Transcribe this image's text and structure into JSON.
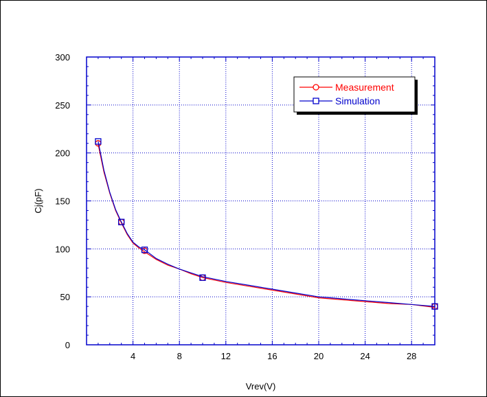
{
  "chart_data": {
    "type": "line",
    "title": "",
    "xlabel": "Vrev(V)",
    "ylabel": "Cj(pF)",
    "xlim": [
      0,
      30
    ],
    "ylim": [
      0,
      300
    ],
    "x_ticks": [
      4,
      8,
      12,
      16,
      20,
      24,
      28
    ],
    "y_ticks": [
      0,
      50,
      100,
      150,
      200,
      250,
      300
    ],
    "grid": true,
    "legend_position": "top-right",
    "series": [
      {
        "name": "Measurement",
        "color": "#ff0000",
        "marker": "circle",
        "curve_x": [
          1,
          1.5,
          2,
          2.5,
          3,
          3.5,
          4,
          4.5,
          5,
          6,
          7,
          8,
          9,
          10,
          12,
          14,
          16,
          18,
          20,
          22,
          24,
          26,
          28,
          30
        ],
        "curve_y": [
          209,
          180,
          158,
          140,
          127,
          115,
          106,
          101,
          97,
          89,
          83,
          79,
          74,
          70,
          65,
          61,
          57,
          53,
          49,
          47,
          45,
          43,
          42,
          39
        ],
        "marker_x": [
          1,
          3,
          5,
          10,
          30
        ],
        "marker_y": [
          210,
          128,
          98,
          70,
          40
        ]
      },
      {
        "name": "Simulation",
        "color": "#0000cc",
        "marker": "square",
        "curve_x": [
          1,
          1.5,
          2,
          2.5,
          3,
          3.5,
          4,
          4.5,
          5,
          6,
          7,
          8,
          9,
          10,
          12,
          14,
          16,
          18,
          20,
          22,
          24,
          26,
          28,
          30
        ],
        "curve_y": [
          212,
          182,
          159,
          141,
          128,
          116,
          107,
          102,
          99,
          90,
          84,
          79,
          75,
          71,
          66,
          62,
          58,
          54,
          50,
          48,
          46,
          44,
          42,
          40
        ],
        "marker_x": [
          1,
          3,
          5,
          10,
          30
        ],
        "marker_y": [
          212,
          128,
          99,
          70,
          40
        ]
      }
    ]
  }
}
